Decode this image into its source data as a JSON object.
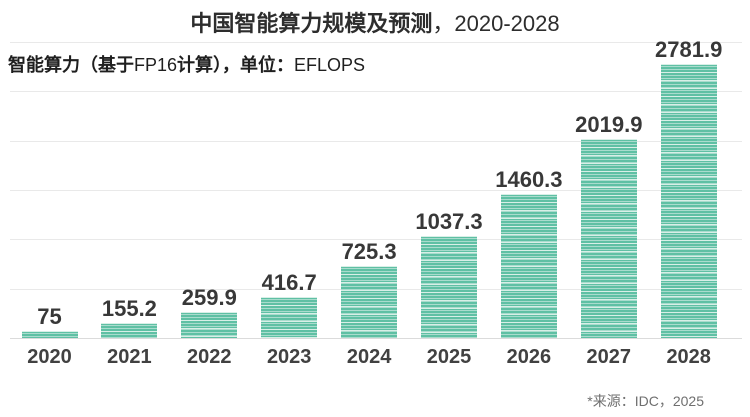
{
  "title": {
    "main": "中国智能算力规模及预测",
    "range": "，2020-2028"
  },
  "subtitle": {
    "part1": "智能算力（基于",
    "part2": "FP16",
    "part3": "计算），单位：",
    "part4": "EFLOPS"
  },
  "source_note": "*来源：IDC，2025",
  "colors": {
    "bar_fill": "#5fc0a4",
    "bar_stripe_light": "#a9dccd",
    "bar_stripe_lighter": "#d8efe7",
    "gridline": "#e9e9e9",
    "baseline": "#dbdbdb",
    "label_text": "#383838",
    "source_text": "#6f6f6f"
  },
  "chart_data": {
    "type": "bar",
    "title": "中国智能算力规模及预测，2020-2028",
    "subtitle": "智能算力（基于FP16计算），单位：EFLOPS",
    "unit": "EFLOPS",
    "categories": [
      "2020",
      "2021",
      "2022",
      "2023",
      "2024",
      "2025",
      "2026",
      "2027",
      "2028"
    ],
    "values": [
      75,
      155.2,
      259.9,
      416.7,
      725.3,
      1037.3,
      1460.3,
      2019.9,
      2781.9
    ],
    "value_labels": [
      "75",
      "155.2",
      "259.9",
      "416.7",
      "725.3",
      "1037.3",
      "1460.3",
      "2019.9",
      "2781.9"
    ],
    "xlabel": "",
    "ylabel": "",
    "ylim": [
      0,
      3000
    ],
    "gridline_interval": 500,
    "grid": true,
    "legend": "none",
    "source": "*来源：IDC，2025"
  }
}
